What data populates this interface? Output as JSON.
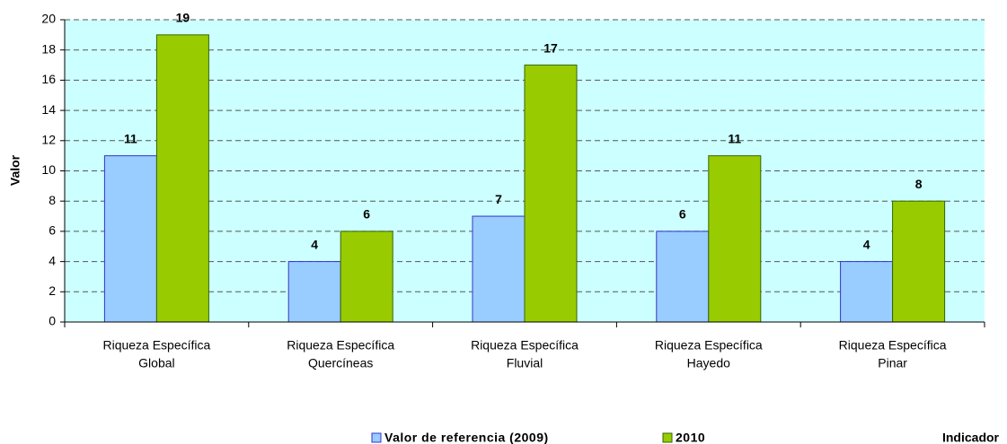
{
  "chart_data": {
    "type": "bar",
    "categories": [
      [
        "Riqueza Específica",
        "Global"
      ],
      [
        "Riqueza Específica",
        "Quercíneas"
      ],
      [
        "Riqueza Específica",
        "Fluvial"
      ],
      [
        "Riqueza Específica",
        "Hayedo"
      ],
      [
        "Riqueza Específica",
        "Pinar"
      ]
    ],
    "series": [
      {
        "name": "Valor de referencia (2009)",
        "color": "#99ccff",
        "stroke": "#3333cc",
        "values": [
          11,
          4,
          7,
          6,
          4
        ]
      },
      {
        "name": "2010",
        "color": "#99cc00",
        "stroke": "#336600",
        "values": [
          19,
          6,
          17,
          11,
          8
        ]
      }
    ],
    "ylabel": "Valor",
    "xlabel": "Indicador",
    "ylim": [
      0,
      20
    ],
    "yticks": [
      0,
      2,
      4,
      6,
      8,
      10,
      12,
      14,
      16,
      18,
      20
    ],
    "grid": true,
    "plot_background": "#ccffff",
    "legend": "bottom"
  }
}
